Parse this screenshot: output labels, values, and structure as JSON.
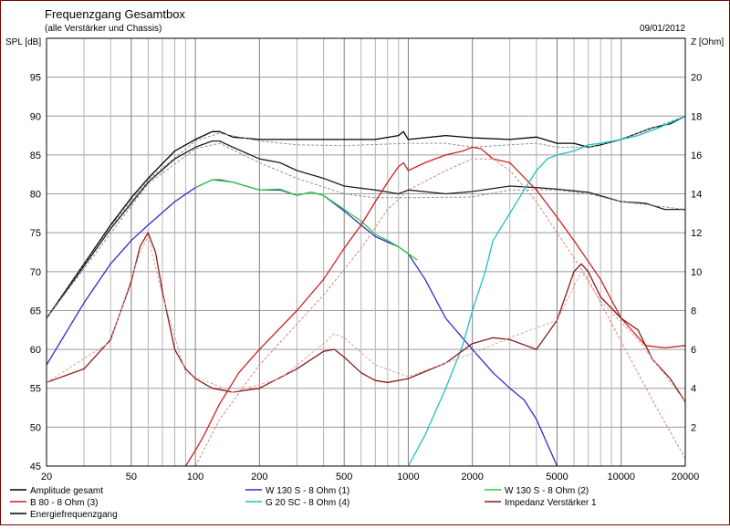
{
  "title": "Frequenzgang Gesamtbox",
  "subtitle": "(alle Verstärker und Chassis)",
  "date": "09/01/2012",
  "chart_data": {
    "type": "line",
    "xscale": "log",
    "xlim": [
      20,
      20000
    ],
    "ylim": [
      45,
      100
    ],
    "y2lim": [
      0,
      22
    ],
    "ylabel": "SPL [dB]",
    "y2label": "Z [Ohm]",
    "xticks": [
      20,
      50,
      100,
      200,
      500,
      1000,
      2000,
      5000,
      10000,
      20000
    ],
    "xtick_labels": [
      "20",
      "50",
      "100",
      "200",
      "500",
      "1000",
      "2000",
      "5000",
      "10000",
      "20000"
    ],
    "yticks": [
      45,
      50,
      55,
      60,
      65,
      70,
      75,
      80,
      85,
      90,
      95
    ],
    "y2ticks": [
      2,
      4,
      6,
      8,
      10,
      12,
      14,
      16,
      18,
      20
    ],
    "grid": true,
    "legend_position": "bottom",
    "series": [
      {
        "name": "Amplitude gesamt",
        "color": "#000000",
        "axis": "left",
        "points": [
          [
            20,
            64
          ],
          [
            30,
            71
          ],
          [
            40,
            76
          ],
          [
            50,
            79.5
          ],
          [
            60,
            82
          ],
          [
            80,
            85.5
          ],
          [
            100,
            87
          ],
          [
            120,
            88
          ],
          [
            130,
            88
          ],
          [
            150,
            87.3
          ],
          [
            200,
            87
          ],
          [
            300,
            87
          ],
          [
            500,
            87
          ],
          [
            700,
            87
          ],
          [
            900,
            87.5
          ],
          [
            950,
            88
          ],
          [
            1000,
            87
          ],
          [
            1500,
            87.5
          ],
          [
            2000,
            87.2
          ],
          [
            3000,
            87
          ],
          [
            4000,
            87.3
          ],
          [
            5000,
            86.5
          ],
          [
            6000,
            86.5
          ],
          [
            7000,
            86
          ],
          [
            8000,
            86.3
          ],
          [
            10000,
            87
          ],
          [
            14000,
            88.5
          ],
          [
            17000,
            89
          ],
          [
            20000,
            90
          ]
        ]
      },
      {
        "name": "Amplitude gesamt (gedimmt)",
        "color": "#909090",
        "axis": "left",
        "dashed": true,
        "points": [
          [
            20,
            64
          ],
          [
            40,
            75.8
          ],
          [
            60,
            81.8
          ],
          [
            100,
            86.8
          ],
          [
            130,
            87.8
          ],
          [
            200,
            86.8
          ],
          [
            300,
            86.3
          ],
          [
            500,
            86.2
          ],
          [
            1000,
            86.5
          ],
          [
            1500,
            86.5
          ],
          [
            2000,
            86
          ],
          [
            3000,
            86.3
          ],
          [
            4000,
            86.5
          ],
          [
            5000,
            86
          ],
          [
            7000,
            86
          ],
          [
            10000,
            87
          ],
          [
            20000,
            90
          ]
        ]
      },
      {
        "name": "Energiefrequenzgang",
        "color": "#202020",
        "axis": "left",
        "points": [
          [
            20,
            64
          ],
          [
            40,
            75.5
          ],
          [
            60,
            81.5
          ],
          [
            80,
            84.5
          ],
          [
            100,
            86
          ],
          [
            120,
            86.8
          ],
          [
            130,
            86.8
          ],
          [
            150,
            86
          ],
          [
            200,
            84.5
          ],
          [
            250,
            84
          ],
          [
            300,
            83
          ],
          [
            400,
            82
          ],
          [
            500,
            81
          ],
          [
            700,
            80.5
          ],
          [
            900,
            80
          ],
          [
            1000,
            80.5
          ],
          [
            1500,
            80
          ],
          [
            2000,
            80.3
          ],
          [
            3000,
            81
          ],
          [
            4000,
            80.8
          ],
          [
            5000,
            80.6
          ],
          [
            7000,
            80.2
          ],
          [
            10000,
            79
          ],
          [
            13000,
            78.8
          ],
          [
            16000,
            78
          ],
          [
            20000,
            78
          ]
        ]
      },
      {
        "name": "Energiefrequenzgang (gedimmt)",
        "color": "#909090",
        "axis": "left",
        "dashed": true,
        "points": [
          [
            20,
            64
          ],
          [
            60,
            81.3
          ],
          [
            100,
            85.8
          ],
          [
            130,
            86.5
          ],
          [
            200,
            84
          ],
          [
            300,
            82
          ],
          [
            500,
            80
          ],
          [
            700,
            79.5
          ],
          [
            1000,
            79.5
          ],
          [
            2000,
            79.6
          ],
          [
            3000,
            80.5
          ],
          [
            4000,
            80.5
          ],
          [
            5000,
            80.5
          ],
          [
            7000,
            80
          ],
          [
            10000,
            79
          ],
          [
            20000,
            78
          ]
        ]
      },
      {
        "name": "W 130 S - 8 Ohm (1)",
        "color": "#2b2bd0",
        "axis": "left",
        "points": [
          [
            20,
            58
          ],
          [
            30,
            66
          ],
          [
            40,
            71
          ],
          [
            50,
            74
          ],
          [
            60,
            76
          ],
          [
            80,
            79
          ],
          [
            100,
            80.8
          ],
          [
            120,
            81.8
          ],
          [
            130,
            81.8
          ],
          [
            150,
            81.5
          ],
          [
            200,
            80.5
          ],
          [
            250,
            80.5
          ],
          [
            300,
            79.8
          ],
          [
            350,
            80.2
          ],
          [
            400,
            79.8
          ],
          [
            500,
            77.8
          ],
          [
            600,
            76
          ],
          [
            700,
            74.5
          ],
          [
            800,
            73.8
          ],
          [
            900,
            73.2
          ],
          [
            1000,
            72.3
          ],
          [
            1200,
            69
          ],
          [
            1500,
            64
          ],
          [
            2000,
            60
          ],
          [
            2500,
            57
          ],
          [
            3000,
            55
          ],
          [
            3500,
            53.5
          ],
          [
            4000,
            51
          ],
          [
            5000,
            45
          ]
        ]
      },
      {
        "name": "W 130 S - 8 Ohm (2)",
        "color": "#33cc33",
        "axis": "left",
        "points": [
          [
            100,
            80.8
          ],
          [
            120,
            81.8
          ],
          [
            150,
            81.5
          ],
          [
            200,
            80.5
          ],
          [
            250,
            80.6
          ],
          [
            300,
            79.8
          ],
          [
            350,
            80.2
          ],
          [
            400,
            79.8
          ],
          [
            500,
            78
          ],
          [
            600,
            76.5
          ],
          [
            700,
            74.8
          ],
          [
            800,
            74
          ],
          [
            900,
            73.2
          ],
          [
            1000,
            72.3
          ],
          [
            1100,
            71.5
          ]
        ]
      },
      {
        "name": "B 80 - 8 Ohm (3)",
        "color": "#d02020",
        "axis": "left",
        "points": [
          [
            90,
            45
          ],
          [
            100,
            47
          ],
          [
            110,
            49
          ],
          [
            130,
            53
          ],
          [
            160,
            57
          ],
          [
            200,
            60
          ],
          [
            300,
            65
          ],
          [
            400,
            69
          ],
          [
            500,
            73
          ],
          [
            600,
            76
          ],
          [
            700,
            79
          ],
          [
            800,
            81.5
          ],
          [
            900,
            83.5
          ],
          [
            950,
            84
          ],
          [
            1000,
            83
          ],
          [
            1200,
            84
          ],
          [
            1500,
            85
          ],
          [
            1800,
            85.5
          ],
          [
            2000,
            86
          ],
          [
            2200,
            85.8
          ],
          [
            2500,
            84.5
          ],
          [
            3000,
            84
          ],
          [
            4000,
            80.5
          ],
          [
            5000,
            77
          ],
          [
            6000,
            74
          ],
          [
            8000,
            69
          ],
          [
            10000,
            64
          ],
          [
            13000,
            60.5
          ],
          [
            16000,
            60.2
          ],
          [
            20000,
            60.5
          ]
        ]
      },
      {
        "name": "B 80 - 8 Ohm (3) (gedimmt)",
        "color": "#e08080",
        "axis": "left",
        "dashed": true,
        "points": [
          [
            100,
            45
          ],
          [
            130,
            51
          ],
          [
            200,
            58
          ],
          [
            400,
            67
          ],
          [
            600,
            73
          ],
          [
            800,
            78
          ],
          [
            1000,
            80.5
          ],
          [
            1500,
            83
          ],
          [
            2000,
            84.5
          ],
          [
            2500,
            84.5
          ],
          [
            3000,
            83
          ],
          [
            4000,
            79
          ],
          [
            5000,
            75
          ],
          [
            7000,
            69
          ],
          [
            10000,
            61
          ],
          [
            15000,
            52
          ],
          [
            20000,
            46
          ]
        ]
      },
      {
        "name": "G 20 SC - 8 Ohm (4)",
        "color": "#20c0c0",
        "axis": "left",
        "points": [
          [
            1000,
            45
          ],
          [
            1200,
            49
          ],
          [
            1500,
            55
          ],
          [
            1800,
            60.5
          ],
          [
            2000,
            65
          ],
          [
            2300,
            70
          ],
          [
            2500,
            74
          ],
          [
            3000,
            77.5
          ],
          [
            3500,
            80.5
          ],
          [
            4000,
            83
          ],
          [
            4500,
            84.5
          ],
          [
            5000,
            85
          ],
          [
            6000,
            85.5
          ],
          [
            7000,
            86.3
          ],
          [
            8000,
            86.5
          ],
          [
            10000,
            87
          ],
          [
            12000,
            87.5
          ],
          [
            15000,
            88.5
          ],
          [
            20000,
            90
          ]
        ]
      },
      {
        "name": "Impedanz Verstärker 1",
        "color": "#8b1a1a",
        "axis": "right",
        "points": [
          [
            20,
            4.3
          ],
          [
            30,
            5
          ],
          [
            40,
            6.5
          ],
          [
            50,
            9.5
          ],
          [
            55,
            11.3
          ],
          [
            60,
            12
          ],
          [
            65,
            11
          ],
          [
            70,
            9
          ],
          [
            80,
            6
          ],
          [
            90,
            5
          ],
          [
            100,
            4.5
          ],
          [
            120,
            4
          ],
          [
            150,
            3.8
          ],
          [
            200,
            4
          ],
          [
            300,
            5
          ],
          [
            400,
            5.9
          ],
          [
            450,
            6
          ],
          [
            500,
            5.6
          ],
          [
            600,
            4.8
          ],
          [
            700,
            4.4
          ],
          [
            800,
            4.3
          ],
          [
            1000,
            4.5
          ],
          [
            1500,
            5.3
          ],
          [
            2000,
            6.3
          ],
          [
            2500,
            6.6
          ],
          [
            3000,
            6.5
          ],
          [
            4000,
            6
          ],
          [
            5000,
            7.5
          ],
          [
            6000,
            10
          ],
          [
            6500,
            10.4
          ],
          [
            7000,
            10
          ],
          [
            8000,
            8.7
          ],
          [
            10000,
            7.6
          ],
          [
            12000,
            7
          ],
          [
            14000,
            5.5
          ],
          [
            17000,
            4.5
          ],
          [
            20000,
            3.3
          ]
        ]
      },
      {
        "name": "Impedanz Verstärker 1 (gedimmt)",
        "color": "#e0a0a0",
        "axis": "right",
        "dashed": true,
        "points": [
          [
            20,
            4.3
          ],
          [
            40,
            6.4
          ],
          [
            55,
            11
          ],
          [
            60,
            11.8
          ],
          [
            70,
            8.8
          ],
          [
            90,
            4.8
          ],
          [
            150,
            3.8
          ],
          [
            250,
            4.5
          ],
          [
            400,
            6.3
          ],
          [
            450,
            6.8
          ],
          [
            500,
            6.6
          ],
          [
            700,
            5.2
          ],
          [
            1000,
            4.6
          ],
          [
            2000,
            5.8
          ],
          [
            3000,
            6.6
          ],
          [
            5000,
            7.5
          ],
          [
            6500,
            10
          ],
          [
            8000,
            8.5
          ],
          [
            12000,
            6.5
          ],
          [
            20000,
            3.3
          ]
        ]
      }
    ]
  },
  "legend": [
    {
      "label": "Amplitude gesamt",
      "color": "#000000"
    },
    {
      "label": "W 130 S - 8 Ohm (1)",
      "color": "#2b2bd0"
    },
    {
      "label": "W 130 S - 8 Ohm (2)",
      "color": "#33cc33"
    },
    {
      "label": "B 80 - 8 Ohm (3)",
      "color": "#d02020"
    },
    {
      "label": "G 20 SC - 8 Ohm (4)",
      "color": "#20c0c0"
    },
    {
      "label": "Impedanz Verstärker 1",
      "color": "#8b1a1a"
    },
    {
      "label": "Energiefrequenzgang",
      "color": "#000000"
    }
  ]
}
